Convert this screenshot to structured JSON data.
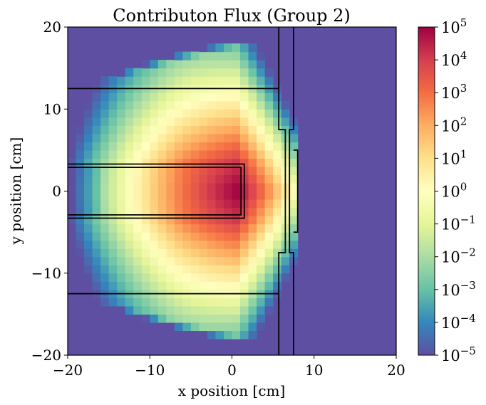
{
  "chart_data": {
    "type": "heatmap",
    "title": "Contributon Flux (Group 2)",
    "xlabel": "x position [cm]",
    "ylabel": "y position [cm]",
    "xlim": [
      -20,
      20
    ],
    "ylim": [
      -20,
      20
    ],
    "x_ticks": [
      {
        "value": -20,
        "label": "−20"
      },
      {
        "value": -10,
        "label": "−10"
      },
      {
        "value": 0,
        "label": "0"
      },
      {
        "value": 10,
        "label": "10"
      },
      {
        "value": 20,
        "label": "20"
      }
    ],
    "y_ticks": [
      {
        "value": 20,
        "label": "20"
      },
      {
        "value": 10,
        "label": "10"
      },
      {
        "value": 0,
        "label": "0"
      },
      {
        "value": -10,
        "label": "−10"
      },
      {
        "value": -20,
        "label": "−20"
      }
    ],
    "grid": false,
    "colorscale": "Spectral_r (log)",
    "colorbar": {
      "scale": "log",
      "range": [
        1e-05,
        100000
      ],
      "ticks": [
        {
          "value": 100000,
          "base": "10",
          "exp": "5"
        },
        {
          "value": 10000,
          "base": "10",
          "exp": "4"
        },
        {
          "value": 1000,
          "base": "10",
          "exp": "3"
        },
        {
          "value": 100,
          "base": "10",
          "exp": "2"
        },
        {
          "value": 10,
          "base": "10",
          "exp": "1"
        },
        {
          "value": 1,
          "base": "10",
          "exp": "0"
        },
        {
          "value": 0.1,
          "base": "10",
          "exp": "−1"
        },
        {
          "value": 0.01,
          "base": "10",
          "exp": "−2"
        },
        {
          "value": 0.001,
          "base": "10",
          "exp": "−3"
        },
        {
          "value": 0.0001,
          "base": "10",
          "exp": "−4"
        },
        {
          "value": 1e-05,
          "base": "10",
          "exp": "−5"
        }
      ]
    },
    "field_description": {
      "peak": {
        "x": 0.5,
        "y": 0.0,
        "log10_value": 5.0
      },
      "background_log10_value": -5.0,
      "duct_axis_y": 0.0,
      "cutoff_x": 7.5
    },
    "region_outlines": [
      {
        "name": "upper-slab",
        "points": [
          [
            -20,
            12.5
          ],
          [
            5.7,
            12.5
          ]
        ]
      },
      {
        "name": "lower-slab",
        "points": [
          [
            -20,
            -12.5
          ],
          [
            5.7,
            -12.5
          ]
        ]
      },
      {
        "name": "duct-outer",
        "points": [
          [
            -20,
            3.3
          ],
          [
            1.5,
            3.3
          ],
          [
            1.5,
            -3.3
          ],
          [
            -20,
            -3.3
          ]
        ]
      },
      {
        "name": "duct-inner",
        "points": [
          [
            -20,
            2.9
          ],
          [
            1.1,
            2.9
          ],
          [
            1.1,
            -2.9
          ],
          [
            -20,
            -2.9
          ]
        ]
      },
      {
        "name": "upper-wall",
        "points": [
          [
            5.7,
            20
          ],
          [
            5.7,
            7.5
          ],
          [
            6.5,
            7.5
          ],
          [
            6.5,
            -7.5
          ],
          [
            5.7,
            -7.5
          ],
          [
            5.7,
            -20
          ]
        ]
      },
      {
        "name": "upper-wall-right",
        "points": [
          [
            7.5,
            20
          ],
          [
            7.5,
            7.5
          ],
          [
            7.0,
            7.5
          ],
          [
            7.0,
            -7.5
          ],
          [
            7.5,
            -7.5
          ],
          [
            7.5,
            -20
          ]
        ]
      },
      {
        "name": "detector",
        "points": [
          [
            7.5,
            5.0
          ],
          [
            8.0,
            5.0
          ],
          [
            8.0,
            -5.0
          ],
          [
            7.5,
            -5.0
          ]
        ]
      }
    ]
  }
}
